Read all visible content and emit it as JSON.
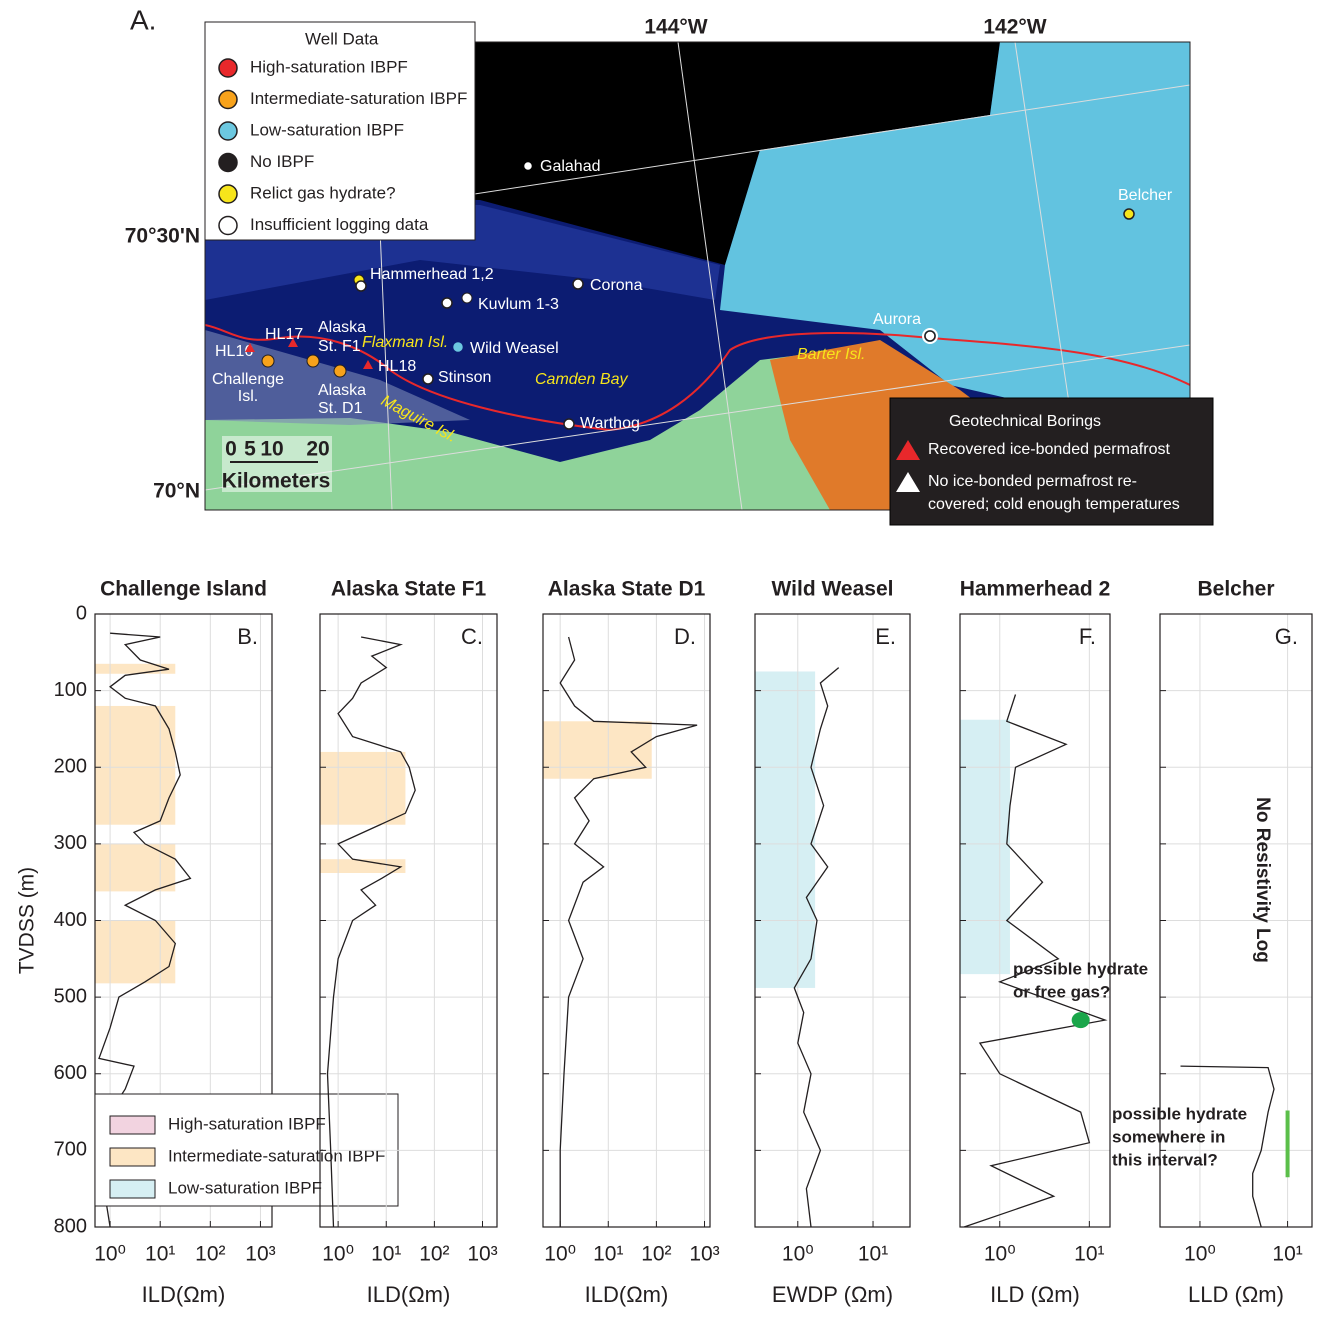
{
  "map": {
    "panel_label": "A.",
    "longitudes": [
      "144°W",
      "142°W"
    ],
    "latitudes": [
      "70°30'N",
      "70°N"
    ],
    "legend": {
      "title": "Well Data",
      "items": [
        {
          "name": "High-saturation IBPF",
          "color": "#e8282b"
        },
        {
          "name": "Intermediate-saturation IBPF",
          "color": "#f7a21b"
        },
        {
          "name": "Low-saturation IBPF",
          "color": "#6cc8e0"
        },
        {
          "name": "No IBPF",
          "color": "#231f20"
        },
        {
          "name": "Relict gas hydrate?",
          "color": "#f7e51b"
        },
        {
          "name": "Insufficient logging data",
          "color": "#ffffff"
        }
      ]
    },
    "wells": [
      "Galahad",
      "Hammerhead 1,2",
      "Kuvlum 1-3",
      "Corona",
      "Wild Weasel",
      "Stinson",
      "Warthog",
      "Aurora",
      "Belcher"
    ],
    "borings": [
      "HL16",
      "HL17",
      "HL18"
    ],
    "places": {
      "challenge": [
        "Challenge",
        "Isl."
      ],
      "f1": [
        "Alaska",
        "St. F1"
      ],
      "d1": [
        "Alaska",
        "St. D1"
      ],
      "flaxman": "Flaxman Isl.",
      "maguire": "Maguire Isl.",
      "camden": "Camden Bay",
      "barter": "Barter Isl."
    },
    "scale": {
      "ticks": [
        "0",
        "5",
        "10",
        "20"
      ],
      "label": "Kilometers"
    },
    "geotech": {
      "title": "Geotechnical Borings",
      "items": [
        {
          "lines": [
            "Recovered ice-bonded permafrost"
          ],
          "color": "#e8282b"
        },
        {
          "lines": [
            "No ice-bonded permafrost re-",
            "covered; cold enough temperatures"
          ],
          "color": "#ffffff"
        }
      ]
    }
  },
  "chart_data": [
    {
      "type": "line",
      "title": "Challenge Island",
      "panel_label": "B.",
      "xlabel": "ILD(Ωm)",
      "ylabel": "TVDSS (m)",
      "ytick_labels": true,
      "xscale": "log",
      "xlim": [
        0.5,
        1700
      ],
      "xticks": [
        {
          "value": 1,
          "label": "10⁰"
        },
        {
          "value": 10,
          "label": "10¹"
        },
        {
          "value": 100,
          "label": "10²"
        },
        {
          "value": 1000,
          "label": "10³"
        }
      ],
      "ylim": [
        0,
        800
      ],
      "yticks": [
        0,
        100,
        200,
        300,
        400,
        500,
        600,
        700,
        800
      ],
      "grid": true,
      "color": "#231f20",
      "bands": [
        {
          "from": 65,
          "to": 78,
          "xmax": 20,
          "color": "#fde6c4"
        },
        {
          "from": 120,
          "to": 275,
          "xmax": 20,
          "color": "#fde6c4"
        },
        {
          "from": 300,
          "to": 362,
          "xmax": 20,
          "color": "#fde6c4"
        },
        {
          "from": 400,
          "to": 482,
          "xmax": 20,
          "color": "#fde6c4"
        }
      ],
      "depth": [
        25,
        30,
        40,
        60,
        72,
        80,
        95,
        110,
        120,
        150,
        180,
        210,
        240,
        270,
        285,
        300,
        320,
        345,
        360,
        380,
        400,
        430,
        460,
        480,
        500,
        540,
        580,
        590,
        620,
        650,
        700,
        760,
        800
      ],
      "values": [
        1,
        10,
        2,
        4,
        15,
        2,
        1,
        2,
        8,
        15,
        20,
        25,
        15,
        10,
        3,
        5,
        20,
        40,
        8,
        2,
        8,
        20,
        15,
        5,
        1.5,
        1,
        0.6,
        3,
        2,
        1,
        1,
        0.8,
        1
      ],
      "legend": [
        {
          "name": "High-saturation IBPF",
          "color": "#f2d3e0"
        },
        {
          "name": "Intermediate-saturation IBPF",
          "color": "#fde6c4"
        },
        {
          "name": "Low-saturation IBPF",
          "color": "#d6eff3"
        }
      ]
    },
    {
      "type": "line",
      "title": "Alaska State F1",
      "panel_label": "C.",
      "xlabel": "ILD(Ωm)",
      "xscale": "log",
      "xlim": [
        0.42,
        2000
      ],
      "xticks": [
        {
          "value": 1,
          "label": "10⁰"
        },
        {
          "value": 10,
          "label": "10¹"
        },
        {
          "value": 100,
          "label": "10²"
        },
        {
          "value": 1000,
          "label": "10³"
        }
      ],
      "ylim": [
        0,
        800
      ],
      "yticks": [
        0,
        100,
        200,
        300,
        400,
        500,
        600,
        700,
        800
      ],
      "grid": true,
      "color": "#231f20",
      "bands": [
        {
          "from": 180,
          "to": 275,
          "xmax": 25,
          "color": "#fde6c4"
        },
        {
          "from": 320,
          "to": 338,
          "xmax": 25,
          "color": "#fde6c4"
        }
      ],
      "depth": [
        30,
        40,
        55,
        70,
        90,
        110,
        130,
        160,
        180,
        200,
        230,
        260,
        280,
        300,
        320,
        330,
        345,
        360,
        380,
        400,
        450,
        500,
        600,
        700,
        800
      ],
      "values": [
        3,
        20,
        5,
        10,
        3,
        2,
        1,
        2,
        20,
        30,
        40,
        25,
        5,
        1,
        2,
        20,
        8,
        3,
        6,
        2,
        1,
        0.8,
        0.6,
        0.7,
        0.8
      ]
    },
    {
      "type": "line",
      "title": "Alaska State D1",
      "panel_label": "D.",
      "xlabel": "ILD(Ωm)",
      "xscale": "log",
      "xlim": [
        0.44,
        1300
      ],
      "xticks": [
        {
          "value": 1,
          "label": "10⁰"
        },
        {
          "value": 10,
          "label": "10¹"
        },
        {
          "value": 100,
          "label": "10²"
        },
        {
          "value": 1000,
          "label": "10³"
        }
      ],
      "ylim": [
        0,
        800
      ],
      "yticks": [
        0,
        100,
        200,
        300,
        400,
        500,
        600,
        700,
        800
      ],
      "grid": true,
      "color": "#231f20",
      "bands": [
        {
          "from": 140,
          "to": 215,
          "xmax": 80,
          "color": "#fde6c4"
        }
      ],
      "depth": [
        30,
        60,
        90,
        120,
        140,
        145,
        160,
        180,
        200,
        215,
        240,
        270,
        300,
        330,
        350,
        400,
        450,
        500,
        600,
        700,
        800
      ],
      "values": [
        1.5,
        2,
        1,
        2,
        5,
        700,
        100,
        30,
        60,
        5,
        2,
        4,
        2,
        8,
        3,
        1.5,
        3,
        1.5,
        1.2,
        1,
        1
      ]
    },
    {
      "type": "line",
      "title": "Wild Weasel",
      "panel_label": "E.",
      "xlabel": "EWDP (Ωm)",
      "xscale": "log",
      "xlim": [
        0.27,
        31
      ],
      "xticks": [
        {
          "value": 1,
          "label": "10⁰"
        },
        {
          "value": 10,
          "label": "10¹"
        }
      ],
      "ylim": [
        0,
        800
      ],
      "yticks": [
        0,
        100,
        200,
        300,
        400,
        500,
        600,
        700,
        800
      ],
      "grid": true,
      "color": "#231f20",
      "bands": [
        {
          "from": 75,
          "to": 488,
          "xmax": 1.7,
          "color": "#d6eff3"
        }
      ],
      "depth": [
        70,
        90,
        120,
        150,
        200,
        250,
        300,
        330,
        370,
        400,
        450,
        488,
        520,
        560,
        600,
        650,
        700,
        750,
        800
      ],
      "values": [
        3.5,
        2,
        2.5,
        2,
        1.5,
        2.2,
        1.5,
        2.5,
        1.3,
        1.8,
        1.5,
        0.9,
        1.2,
        1,
        1.5,
        1.2,
        2,
        1.3,
        1.5
      ]
    },
    {
      "type": "line",
      "title": "Hammerhead 2",
      "panel_label": "F.",
      "xlabel": "ILD (Ωm)",
      "xscale": "log",
      "xlim": [
        0.36,
        17
      ],
      "xticks": [
        {
          "value": 1,
          "label": "10⁰"
        },
        {
          "value": 10,
          "label": "10¹"
        }
      ],
      "ylim": [
        0,
        800
      ],
      "yticks": [
        0,
        100,
        200,
        300,
        400,
        500,
        600,
        700,
        800
      ],
      "grid": true,
      "color": "#231f20",
      "bands": [
        {
          "from": 138,
          "to": 470,
          "xmax": 1.3,
          "color": "#d6eff3"
        }
      ],
      "depth": [
        105,
        140,
        170,
        200,
        250,
        300,
        350,
        400,
        450,
        480,
        530,
        560,
        600,
        650,
        690,
        720,
        760,
        800
      ],
      "values": [
        1.5,
        1.2,
        5.5,
        1.5,
        1.3,
        1.2,
        3,
        1.2,
        4.5,
        1,
        15,
        0.6,
        1,
        8,
        10,
        0.8,
        4,
        0.4
      ],
      "annotation": {
        "lines": [
          "possible hydrate",
          "or free gas?"
        ],
        "depth": 530,
        "value": 8,
        "color": "#1aa64a"
      }
    },
    {
      "type": "line",
      "title": "Belcher",
      "panel_label": "G.",
      "xlabel": "LLD (Ωm)",
      "xscale": "log",
      "xlim": [
        0.35,
        19
      ],
      "xticks": [
        {
          "value": 1,
          "label": "10⁰"
        },
        {
          "value": 10,
          "label": "10¹"
        }
      ],
      "ylim": [
        0,
        800
      ],
      "yticks": [
        0,
        100,
        200,
        300,
        400,
        500,
        600,
        700,
        800
      ],
      "grid": true,
      "color": "#231f20",
      "depth": [
        590,
        592,
        620,
        650,
        700,
        730,
        760,
        800
      ],
      "values": [
        0.6,
        6,
        7,
        6,
        5,
        4,
        4,
        5
      ],
      "note": "No Resistivity Log",
      "annotation": {
        "lines": [
          "possible hydrate",
          "somewhere in",
          "this interval?"
        ],
        "from": 648,
        "to": 735,
        "value": 10,
        "color": "#5bbf4a"
      }
    }
  ]
}
